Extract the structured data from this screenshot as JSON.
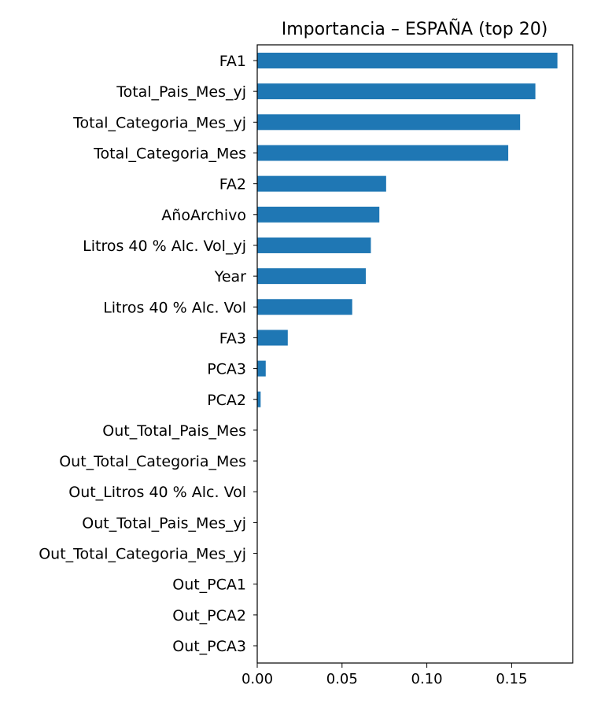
{
  "chart_data": {
    "type": "bar",
    "orientation": "horizontal",
    "title": "Importancia – ESPAÑA (top 20)",
    "xlabel": "",
    "ylabel": "",
    "xlim": [
      0,
      0.186
    ],
    "xticks": [
      0.0,
      0.05,
      0.1,
      0.15
    ],
    "xtick_labels": [
      "0.00",
      "0.05",
      "0.10",
      "0.15"
    ],
    "grid": false,
    "legend": "none",
    "bar_color": "#1f77b4",
    "categories": [
      "FA1",
      "Total_Pais_Mes_yj",
      "Total_Categoria_Mes_yj",
      "Total_Categoria_Mes",
      "FA2",
      "AñoArchivo",
      "Litros 40 % Alc. Vol_yj",
      "Year",
      "Litros 40 % Alc. Vol",
      "FA3",
      "PCA3",
      "PCA2",
      "Out_Total_Pais_Mes",
      "Out_Total_Categoria_Mes",
      "Out_Litros 40 % Alc. Vol",
      "Out_Total_Pais_Mes_yj",
      "Out_Total_Categoria_Mes_yj",
      "Out_PCA1",
      "Out_PCA2",
      "Out_PCA3"
    ],
    "values": [
      0.177,
      0.164,
      0.155,
      0.148,
      0.076,
      0.072,
      0.067,
      0.064,
      0.056,
      0.018,
      0.005,
      0.002,
      0.0,
      0.0,
      0.0,
      0.0,
      0.0,
      0.0,
      0.0,
      0.0
    ]
  }
}
